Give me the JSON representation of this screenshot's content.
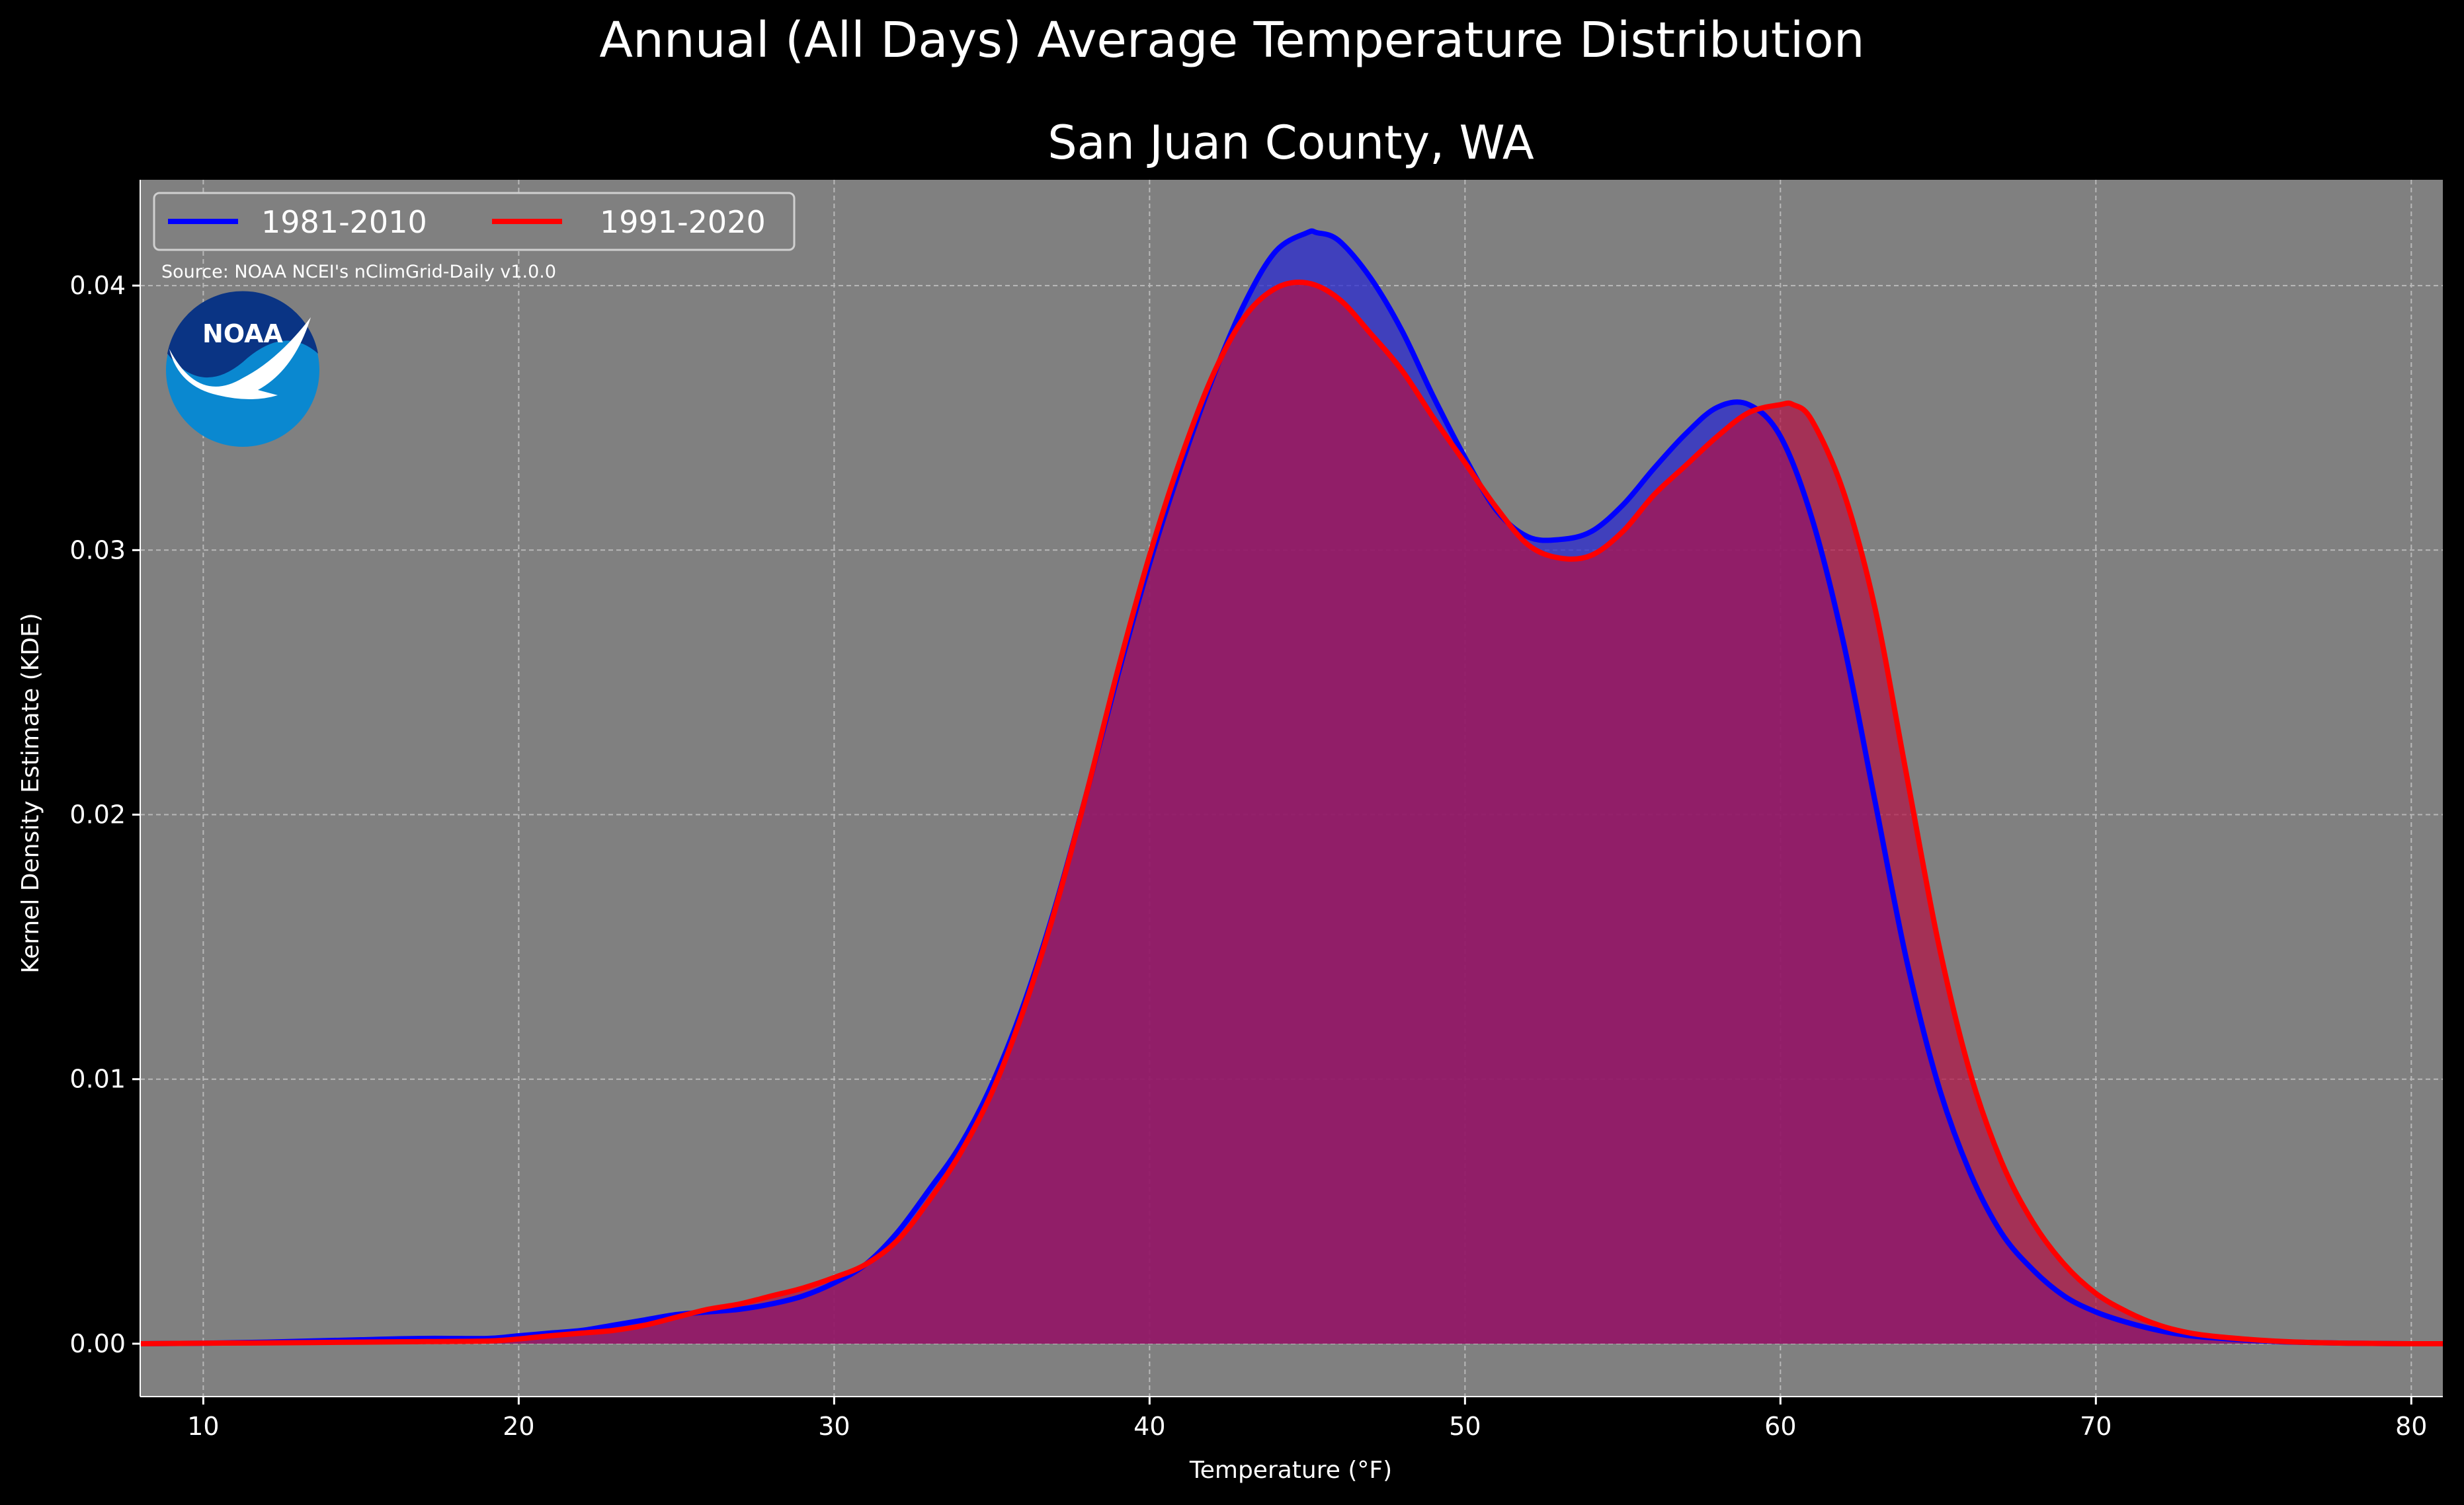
{
  "chart_data": {
    "type": "area",
    "suptitle": "Annual (All Days) Average Temperature Distribution",
    "title": "San Juan County, WA",
    "xlabel": "Temperature (°F)",
    "ylabel": "Kernel Density Estimate (KDE)",
    "xlim": [
      8,
      81
    ],
    "ylim": [
      -0.002,
      0.044
    ],
    "xticks": [
      10,
      20,
      30,
      40,
      50,
      60,
      70,
      80
    ],
    "yticks": [
      0.0,
      0.01,
      0.02,
      0.03,
      0.04
    ],
    "xtick_labels": [
      "10",
      "20",
      "30",
      "40",
      "50",
      "60",
      "70",
      "80"
    ],
    "ytick_labels": [
      "0.00",
      "0.01",
      "0.02",
      "0.03",
      "0.04"
    ],
    "grid": true,
    "legend_position": "top-left",
    "source_note": "Source: NOAA NCEI's nClimGrid-Daily v1.0.0",
    "logo_text": "NOAA",
    "colors": {
      "background": "#000000",
      "plot_bg": "#808080",
      "series_1": "#0000ff",
      "series_1_fill": "#2b2bd0",
      "series_2": "#ff0000",
      "series_2_fill": "#b31045",
      "overlap_fill": "#9c1e5c",
      "text": "#ffffff",
      "logo_dark": "#0a3484",
      "logo_light": "#0a88d0"
    },
    "series": [
      {
        "name": "1981-2010",
        "x": [
          8,
          10,
          12,
          15,
          17,
          19,
          20,
          21,
          22,
          23,
          24,
          25,
          26,
          27,
          28,
          29,
          30,
          31,
          32,
          33,
          34,
          35,
          36,
          37,
          38,
          39,
          40,
          41,
          42,
          43,
          44,
          45,
          45.3,
          46,
          47,
          48,
          49,
          50,
          51,
          52,
          53,
          54,
          55,
          56,
          57,
          58,
          59,
          60,
          61,
          62,
          63,
          64,
          65,
          66,
          67,
          68,
          69,
          70,
          71,
          72,
          73,
          74,
          75,
          76,
          77,
          78,
          79,
          80,
          81
        ],
        "values": [
          0,
          2e-05,
          6e-05,
          0.00015,
          0.0002,
          0.0002,
          0.0003,
          0.0004,
          0.0005,
          0.0007,
          0.0009,
          0.0011,
          0.0012,
          0.0013,
          0.0015,
          0.0018,
          0.0023,
          0.003,
          0.0042,
          0.0058,
          0.0075,
          0.0098,
          0.0128,
          0.0165,
          0.0208,
          0.0253,
          0.0295,
          0.0332,
          0.0365,
          0.0393,
          0.0413,
          0.042,
          0.042,
          0.0417,
          0.0403,
          0.0383,
          0.0358,
          0.0335,
          0.0315,
          0.0305,
          0.0304,
          0.0307,
          0.0317,
          0.0331,
          0.0344,
          0.0354,
          0.0355,
          0.0343,
          0.0312,
          0.0265,
          0.0205,
          0.0145,
          0.0098,
          0.0065,
          0.0042,
          0.0028,
          0.0018,
          0.0012,
          0.0008,
          0.0005,
          0.0003,
          0.0002,
          0.00012,
          7e-05,
          4e-05,
          2e-05,
          1e-05,
          0,
          0
        ]
      },
      {
        "name": "1991-2020",
        "x": [
          8,
          10,
          12,
          15,
          17,
          19,
          20,
          21,
          22,
          23,
          24,
          25,
          26,
          27,
          28,
          29,
          30,
          31,
          32,
          33,
          34,
          35,
          36,
          37,
          38,
          39,
          40,
          41,
          42,
          43,
          44,
          45,
          46,
          47,
          48,
          49,
          50,
          51,
          52,
          53,
          54,
          55,
          56,
          57,
          58,
          59,
          60,
          60.4,
          61,
          62,
          63,
          64,
          65,
          66,
          67,
          68,
          69,
          70,
          71,
          72,
          73,
          74,
          75,
          76,
          77,
          78,
          79,
          80,
          81
        ],
        "values": [
          0,
          2e-05,
          3e-05,
          6e-05,
          8e-05,
          0.0001,
          0.00018,
          0.0003,
          0.0004,
          0.0005,
          0.0007,
          0.001,
          0.0013,
          0.0015,
          0.0018,
          0.0021,
          0.0025,
          0.003,
          0.0039,
          0.0054,
          0.0072,
          0.0095,
          0.0126,
          0.0164,
          0.0208,
          0.0255,
          0.0298,
          0.0335,
          0.0366,
          0.0388,
          0.0399,
          0.0401,
          0.0395,
          0.0382,
          0.0368,
          0.035,
          0.0333,
          0.0316,
          0.0302,
          0.0297,
          0.0298,
          0.0307,
          0.0321,
          0.0332,
          0.0343,
          0.0352,
          0.0355,
          0.0355,
          0.0349,
          0.0322,
          0.0278,
          0.0215,
          0.0152,
          0.0103,
          0.0069,
          0.0046,
          0.003,
          0.0019,
          0.0012,
          0.0007,
          0.0004,
          0.00025,
          0.00015,
          8e-05,
          4e-05,
          2e-05,
          1e-05,
          0,
          0
        ]
      }
    ]
  }
}
